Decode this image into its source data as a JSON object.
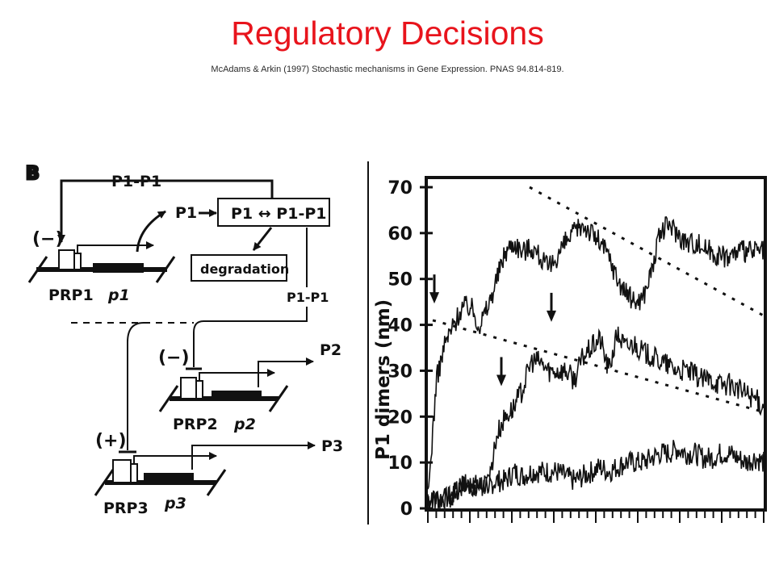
{
  "slide": {
    "title": "Regulatory Decisions",
    "citation": "McAdams & Arkin (1997) Stochastic mechanisms in Gene Expression. PNAS 94.814-819."
  },
  "diagram": {
    "panel_label": "B",
    "dimer_top": "P1-P1",
    "p1_out": "P1",
    "equilibrium": "P1 ↔ P1-P1",
    "degradation": "degradation",
    "minus_1": "(−)",
    "minus_2": "(−)",
    "plus_3": "(+)",
    "promoter_1": "PRP1",
    "gene_1": "p1",
    "dimer_mid": "P1-P1",
    "promoter_2": "PRP2",
    "gene_2": "p2",
    "out_2": "P2",
    "promoter_3": "PRP3",
    "gene_3": "p3",
    "out_3": "P3"
  },
  "chart_data": {
    "type": "line",
    "ylabel": "P1 dimers (nm)",
    "ylim": [
      0,
      70
    ],
    "yticks": [
      "0",
      "10",
      "20",
      "30",
      "40",
      "50",
      "60",
      "70"
    ],
    "series": [
      {
        "values": [
          2,
          2,
          2,
          3,
          5,
          5,
          5,
          5,
          6,
          6,
          8,
          7,
          8,
          8,
          8,
          8,
          7,
          6,
          7,
          8,
          9,
          8,
          9,
          10,
          10,
          10,
          11,
          12,
          12,
          13,
          12,
          12,
          11,
          11,
          12,
          12,
          11,
          10,
          11,
          10
        ]
      },
      {
        "values": [
          2,
          2,
          2,
          3,
          5,
          5,
          5,
          5,
          16,
          20,
          22,
          26,
          32,
          32,
          30,
          30,
          30,
          28,
          33,
          35,
          37,
          30,
          38,
          35,
          36,
          34,
          33,
          32,
          31,
          30,
          30,
          29,
          28,
          28,
          27,
          27,
          26,
          25,
          24,
          22
        ]
      },
      {
        "values": [
          2,
          28,
          36,
          40,
          44,
          44,
          40,
          44,
          50,
          56,
          58,
          56,
          57,
          55,
          52,
          55,
          58,
          60,
          62,
          60,
          58,
          55,
          50,
          47,
          45,
          46,
          52,
          60,
          62,
          60,
          58,
          58,
          57,
          56,
          55,
          55,
          56,
          56,
          56,
          56
        ]
      }
    ],
    "dashed_lines": [
      {
        "y": [
          70,
          42
        ]
      },
      {
        "y": [
          41,
          21
        ]
      }
    ],
    "arrows": [
      {
        "y": 45
      },
      {
        "y": 41
      },
      {
        "y": 27
      }
    ]
  }
}
